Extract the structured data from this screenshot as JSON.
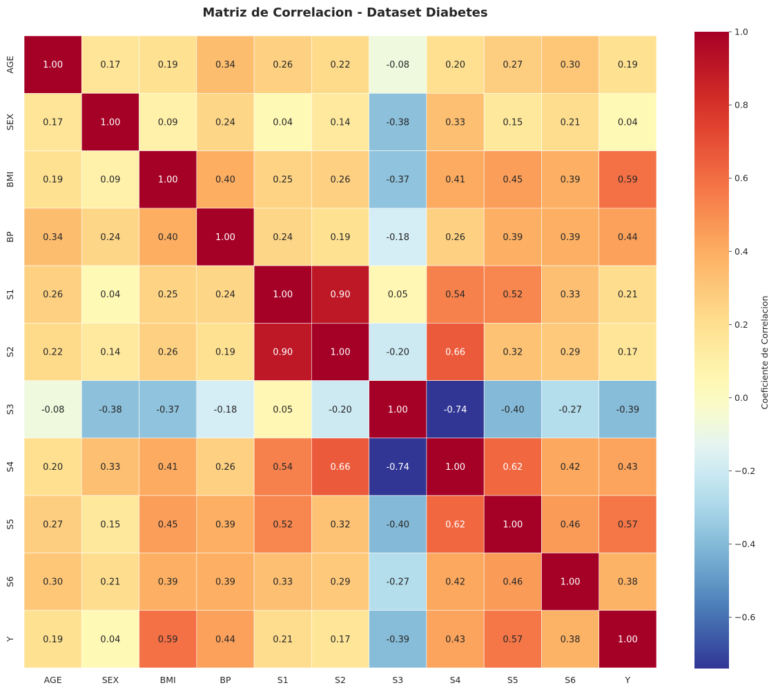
{
  "chart_data": {
    "type": "heatmap",
    "title": "Matriz de Correlacion - Dataset Diabetes",
    "x_labels": [
      "AGE",
      "SEX",
      "BMI",
      "BP",
      "S1",
      "S2",
      "S3",
      "S4",
      "S5",
      "S6",
      "Y"
    ],
    "y_labels": [
      "AGE",
      "SEX",
      "BMI",
      "BP",
      "S1",
      "S2",
      "S3",
      "S4",
      "S5",
      "S6",
      "Y"
    ],
    "values": [
      [
        1.0,
        0.17,
        0.19,
        0.34,
        0.26,
        0.22,
        -0.08,
        0.2,
        0.27,
        0.3,
        0.19
      ],
      [
        0.17,
        1.0,
        0.09,
        0.24,
        0.04,
        0.14,
        -0.38,
        0.33,
        0.15,
        0.21,
        0.04
      ],
      [
        0.19,
        0.09,
        1.0,
        0.4,
        0.25,
        0.26,
        -0.37,
        0.41,
        0.45,
        0.39,
        0.59
      ],
      [
        0.34,
        0.24,
        0.4,
        1.0,
        0.24,
        0.19,
        -0.18,
        0.26,
        0.39,
        0.39,
        0.44
      ],
      [
        0.26,
        0.04,
        0.25,
        0.24,
        1.0,
        0.9,
        0.05,
        0.54,
        0.52,
        0.33,
        0.21
      ],
      [
        0.22,
        0.14,
        0.26,
        0.19,
        0.9,
        1.0,
        -0.2,
        0.66,
        0.32,
        0.29,
        0.17
      ],
      [
        -0.08,
        -0.38,
        -0.37,
        -0.18,
        0.05,
        -0.2,
        1.0,
        -0.74,
        -0.4,
        -0.27,
        -0.39
      ],
      [
        0.2,
        0.33,
        0.41,
        0.26,
        0.54,
        0.66,
        -0.74,
        1.0,
        0.62,
        0.42,
        0.43
      ],
      [
        0.27,
        0.15,
        0.45,
        0.39,
        0.52,
        0.32,
        -0.4,
        0.62,
        1.0,
        0.46,
        0.57
      ],
      [
        0.3,
        0.21,
        0.39,
        0.39,
        0.33,
        0.29,
        -0.27,
        0.42,
        0.46,
        1.0,
        0.38
      ],
      [
        0.19,
        0.04,
        0.59,
        0.44,
        0.21,
        0.17,
        -0.39,
        0.43,
        0.57,
        0.38,
        1.0
      ]
    ],
    "value_format": "0.00",
    "colormap": "RdYlBu_r",
    "vmin": -0.74,
    "vmax": 1.0,
    "colorbar": {
      "label": "Coeficiente de Correlacion",
      "ticks": [
        1.0,
        0.8,
        0.6,
        0.4,
        0.2,
        0.0,
        -0.2,
        -0.4,
        -0.6
      ],
      "tick_labels": [
        "1.0",
        "0.8",
        "0.6",
        "0.4",
        "0.2",
        "0.0",
        "−0.2",
        "−0.4",
        "−0.6"
      ]
    },
    "grid": true,
    "legend_position": "right"
  }
}
